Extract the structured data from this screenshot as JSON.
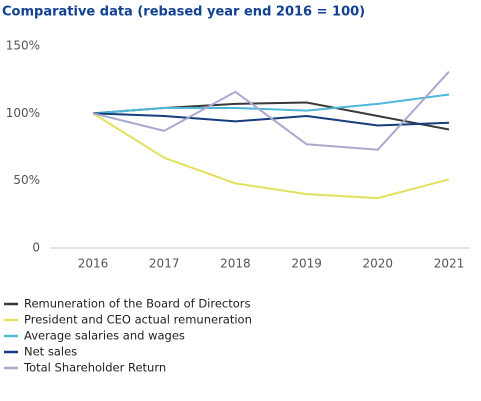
{
  "chart_data": {
    "type": "line",
    "title": "Comparative data (rebased year end 2016 = 100)",
    "categories": [
      "2016",
      "2017",
      "2018",
      "2019",
      "2020",
      "2021"
    ],
    "series": [
      {
        "name": "Remuneration of the Board of Directors",
        "color": "#3a3a3a",
        "values": [
          100,
          104,
          107,
          108,
          98,
          88
        ]
      },
      {
        "name": "President and CEO actual remuneration",
        "color": "#e2e05c",
        "values": [
          100,
          67,
          48,
          40,
          37,
          51
        ]
      },
      {
        "name": "Average salaries and wages",
        "color": "#4db8d8",
        "values": [
          100,
          104,
          104,
          102,
          107,
          114
        ]
      },
      {
        "name": "Net sales",
        "color": "#163d7e",
        "values": [
          100,
          98,
          94,
          98,
          91,
          93
        ]
      },
      {
        "name": "Total Shareholder Return",
        "color": "#a9a9cf",
        "values": [
          100,
          87,
          116,
          77,
          73,
          131
        ]
      }
    ],
    "ylim": [
      0,
      150
    ],
    "yticks": [
      0,
      {
        "value": 50,
        "label": "50%"
      },
      {
        "value": 100,
        "label": "100%"
      },
      {
        "value": 150,
        "label": "150%"
      }
    ],
    "grid": false
  }
}
